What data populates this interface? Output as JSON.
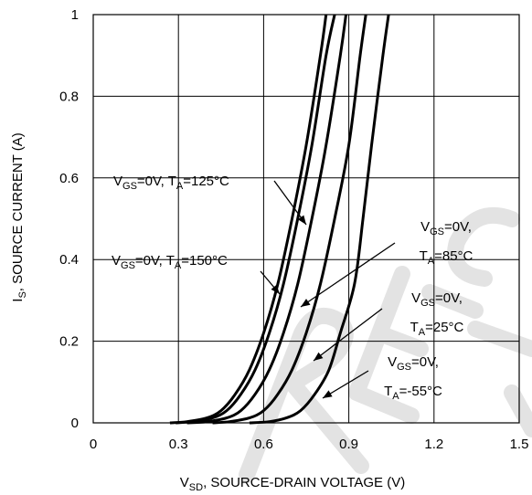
{
  "chart_data": {
    "type": "line",
    "xlabel": {
      "main": "V",
      "sub": "SD",
      "rest": ", SOURCE-DRAIN VOLTAGE (V)"
    },
    "ylabel": {
      "main": "I",
      "sub": "S",
      "rest": ", SOURCE CURRENT (A)"
    },
    "xlim": [
      0,
      1.5
    ],
    "ylim": [
      0,
      1
    ],
    "xticks": [
      "0",
      "0.3",
      "0.6",
      "0.9",
      "1.2",
      "1.5"
    ],
    "yticks": [
      "0",
      "0.2",
      "0.4",
      "0.6",
      "0.8",
      "1"
    ],
    "grid": true,
    "series": [
      {
        "name": "VGS=0V, TA=150°C",
        "x": [
          0.27,
          0.33,
          0.4,
          0.45,
          0.5,
          0.55,
          0.6,
          0.65,
          0.7,
          0.75,
          0.8,
          0.82
        ],
        "y": [
          0,
          0.003,
          0.012,
          0.03,
          0.07,
          0.13,
          0.22,
          0.34,
          0.5,
          0.68,
          0.9,
          1.0
        ]
      },
      {
        "name": "VGS=0V, TA=125°C",
        "x": [
          0.29,
          0.35,
          0.42,
          0.47,
          0.52,
          0.57,
          0.62,
          0.67,
          0.72,
          0.77,
          0.82,
          0.85
        ],
        "y": [
          0,
          0.003,
          0.012,
          0.03,
          0.07,
          0.13,
          0.22,
          0.34,
          0.5,
          0.68,
          0.9,
          1.0
        ]
      },
      {
        "name": "VGS=0V, TA=85°C",
        "x": [
          0.33,
          0.4,
          0.47,
          0.52,
          0.57,
          0.62,
          0.67,
          0.72,
          0.77,
          0.82,
          0.87,
          0.89
        ],
        "y": [
          0,
          0.003,
          0.012,
          0.03,
          0.07,
          0.13,
          0.22,
          0.34,
          0.5,
          0.68,
          0.9,
          1.0
        ]
      },
      {
        "name": "VGS=0V, TA=25°C",
        "x": [
          0.42,
          0.48,
          0.55,
          0.6,
          0.65,
          0.7,
          0.75,
          0.8,
          0.85,
          0.9,
          0.94,
          0.96
        ],
        "y": [
          0,
          0.003,
          0.012,
          0.03,
          0.07,
          0.13,
          0.22,
          0.34,
          0.5,
          0.68,
          0.9,
          1.0
        ]
      },
      {
        "name": "VGS=0V, TA=-55°C",
        "x": [
          0.55,
          0.62,
          0.68,
          0.73,
          0.78,
          0.83,
          0.87,
          0.92,
          0.95,
          0.98,
          1.02,
          1.04
        ],
        "y": [
          0,
          0.003,
          0.012,
          0.03,
          0.07,
          0.13,
          0.22,
          0.34,
          0.5,
          0.68,
          0.9,
          1.0
        ]
      }
    ],
    "annotations": [
      {
        "lines": [
          [
            [
              "V",
              ""
            ],
            [
              "GS",
              "sub"
            ],
            [
              "=0V, T",
              ""
            ],
            [
              "A",
              "sub"
            ],
            [
              "=125°C",
              ""
            ]
          ]
        ]
      },
      {
        "lines": [
          [
            [
              "V",
              ""
            ],
            [
              "GS",
              "sub"
            ],
            [
              "=0V, T",
              ""
            ],
            [
              "A",
              "sub"
            ],
            [
              "=150°C",
              ""
            ]
          ]
        ]
      },
      {
        "lines": [
          [
            [
              "V",
              ""
            ],
            [
              "GS",
              "sub"
            ],
            [
              "=0V,",
              ""
            ]
          ],
          [
            [
              "T",
              ""
            ],
            [
              "A",
              "sub"
            ],
            [
              "=85°C",
              ""
            ]
          ]
        ]
      },
      {
        "lines": [
          [
            [
              "V",
              ""
            ],
            [
              "GS",
              "sub"
            ],
            [
              "=0V,",
              ""
            ]
          ],
          [
            [
              "T",
              ""
            ],
            [
              "A",
              "sub"
            ],
            [
              "=25°C",
              ""
            ]
          ]
        ]
      },
      {
        "lines": [
          [
            [
              "V",
              ""
            ],
            [
              "GS",
              "sub"
            ],
            [
              "=0V,",
              ""
            ]
          ],
          [
            [
              "T",
              ""
            ],
            [
              "A",
              "sub"
            ],
            [
              "=-55°C",
              ""
            ]
          ]
        ]
      }
    ]
  }
}
